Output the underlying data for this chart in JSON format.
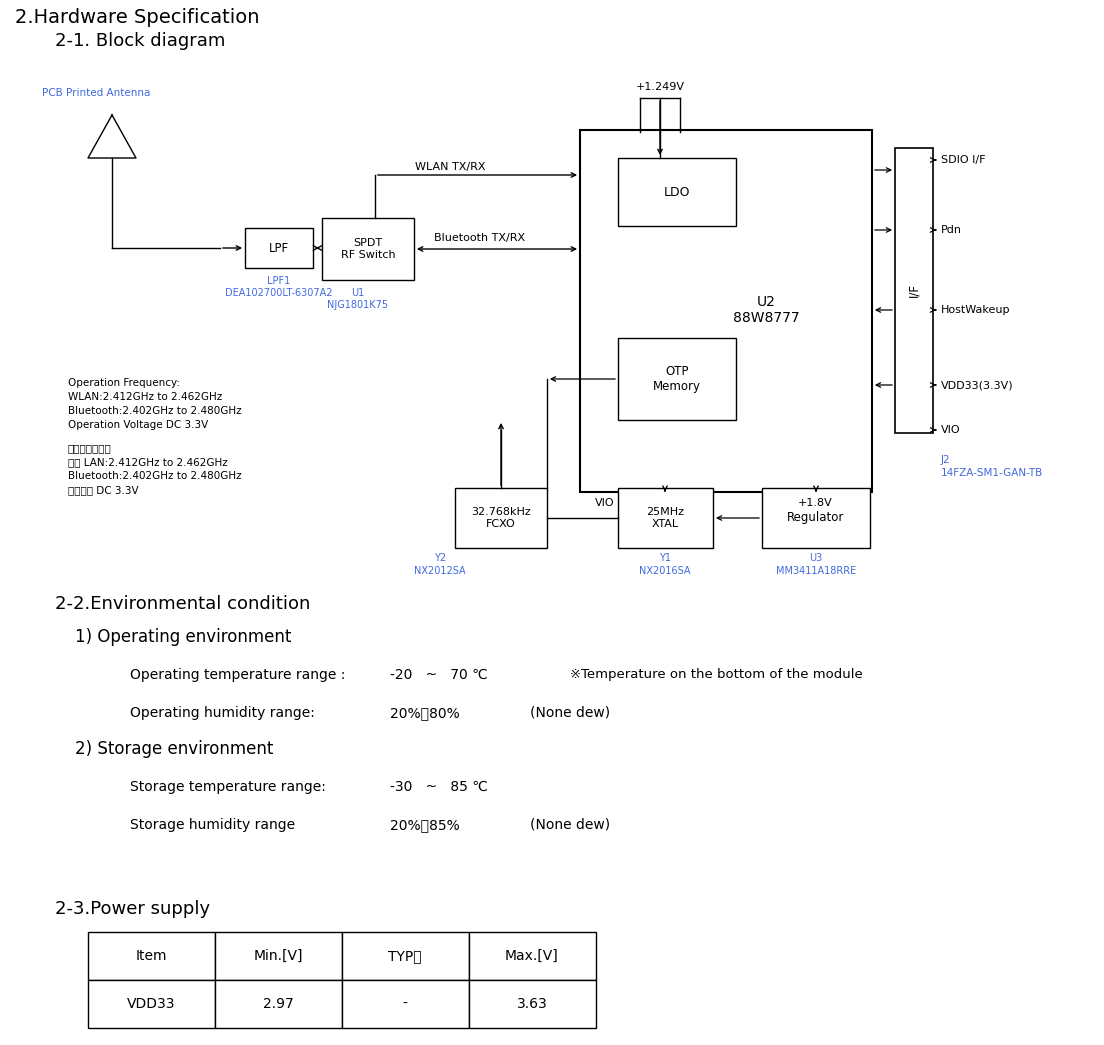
{
  "title_main": "2.Hardware Specification",
  "title_block": "2-1. Block diagram",
  "title_env": "2-2.Environmental condition",
  "title_op": "1) Operating environment",
  "title_stor": "2) Storage environment",
  "title_power": "2-3.Power supply",
  "op_temp_label": "Operating temperature range :",
  "op_temp_value": "-20   ~   70 ℃",
  "op_temp_note": "※Temperature on the bottom of the module",
  "op_humid_label": "Operating humidity range:",
  "op_humid_value": "20%～80%",
  "op_humid_note": "(None dew)",
  "stor_temp_label": "Storage temperature range:",
  "stor_temp_value": "-30   ~   85 ℃",
  "stor_humid_label": "Storage humidity range",
  "stor_humid_value": "20%～85%",
  "stor_humid_note": "(None dew)",
  "table_headers": [
    "Item",
    "Min.[V]",
    "TYP．",
    "Max.[V]"
  ],
  "table_row": [
    "VDD33",
    "2.97",
    "-",
    "3.63"
  ],
  "bg_color": "#ffffff",
  "text_color": "#000000",
  "blue_color": "#4169E1",
  "pcb_label": "PCB Printed Antenna",
  "lpf_label": "LPF",
  "lpf_part1": "LPF1",
  "lpf_part2": "DEA102700LT-6307A2",
  "spdt_label": "SPDT\nRF Switch",
  "spdt_part1": "U1",
  "spdt_part2": "NJG1801K75",
  "ldo_label": "LDO",
  "otp_label": "OTP\nMemory",
  "u2_label": "U2\n88W8777",
  "fcxo_label": "32.768kHz\nFCXO",
  "y2_part1": "Y2",
  "y2_part2": "NX2012SA",
  "xtal_label": "25MHz\nXTAL",
  "y1_part1": "Y1",
  "y1_part2": "NX2016SA",
  "reg_label": "Regulator",
  "u3_part1": "U3",
  "u3_part2": "MM3411A18RRE",
  "j2_part1": "J2",
  "j2_part2": "14FZA-SM1-GAN-TB",
  "sdio_label": "SDIO I/F",
  "pdn_label": "Pdn",
  "hostwake_label": "HostWakeup",
  "vdd33_label": "VDD33(3.3V)",
  "vio_label": "VIO",
  "if_label": "I/F",
  "wlan_label": "WLAN TX/RX",
  "bt_label": "Bluetooth TX/RX",
  "v1249_label": "+1.249V",
  "vio2_label": "VIO",
  "v18_label": "+1.8V",
  "op_freq_line1": "Operation Frequency:",
  "op_freq_line2": "WLAN:2.412GHz to 2.462GHz",
  "op_freq_line3": "Bluetooth:2.402GHz to 2.480GHz",
  "op_freq_line4": "Operation Voltage DC 3.3V",
  "jp_freq_line1": "使用周波数帯：",
  "jp_freq_line2": "無線 LAN:2.412GHz to 2.462GHz",
  "jp_freq_line3": "Bluetooth:2.402GHz to 2.480GHz",
  "jp_freq_line4": "定格電圧 DC 3.3V"
}
